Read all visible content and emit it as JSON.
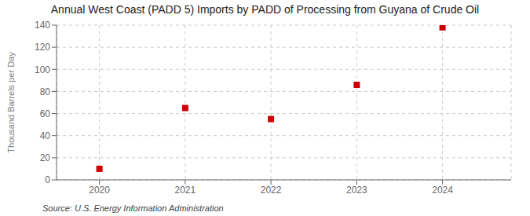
{
  "chart_data": {
    "type": "scatter",
    "title": "Annual West Coast (PADD 5) Imports by PADD of Processing from Guyana of Crude Oil",
    "y_label": "Thousand Barrels per Day",
    "annotation": "Source: U.S. Energy Information Administration",
    "x": [
      2020,
      2021,
      2022,
      2023,
      2024
    ],
    "values": [
      10,
      65,
      55,
      86,
      138
    ],
    "xlim": [
      2019.5,
      2024.8
    ],
    "xticks": [
      2020,
      2021,
      2022,
      2023,
      2024
    ],
    "ylim": [
      0,
      140
    ],
    "yticks": [
      0,
      20,
      40,
      60,
      80,
      100,
      120,
      140
    ],
    "color": "#cc0000",
    "marker": "square",
    "grid": true
  }
}
